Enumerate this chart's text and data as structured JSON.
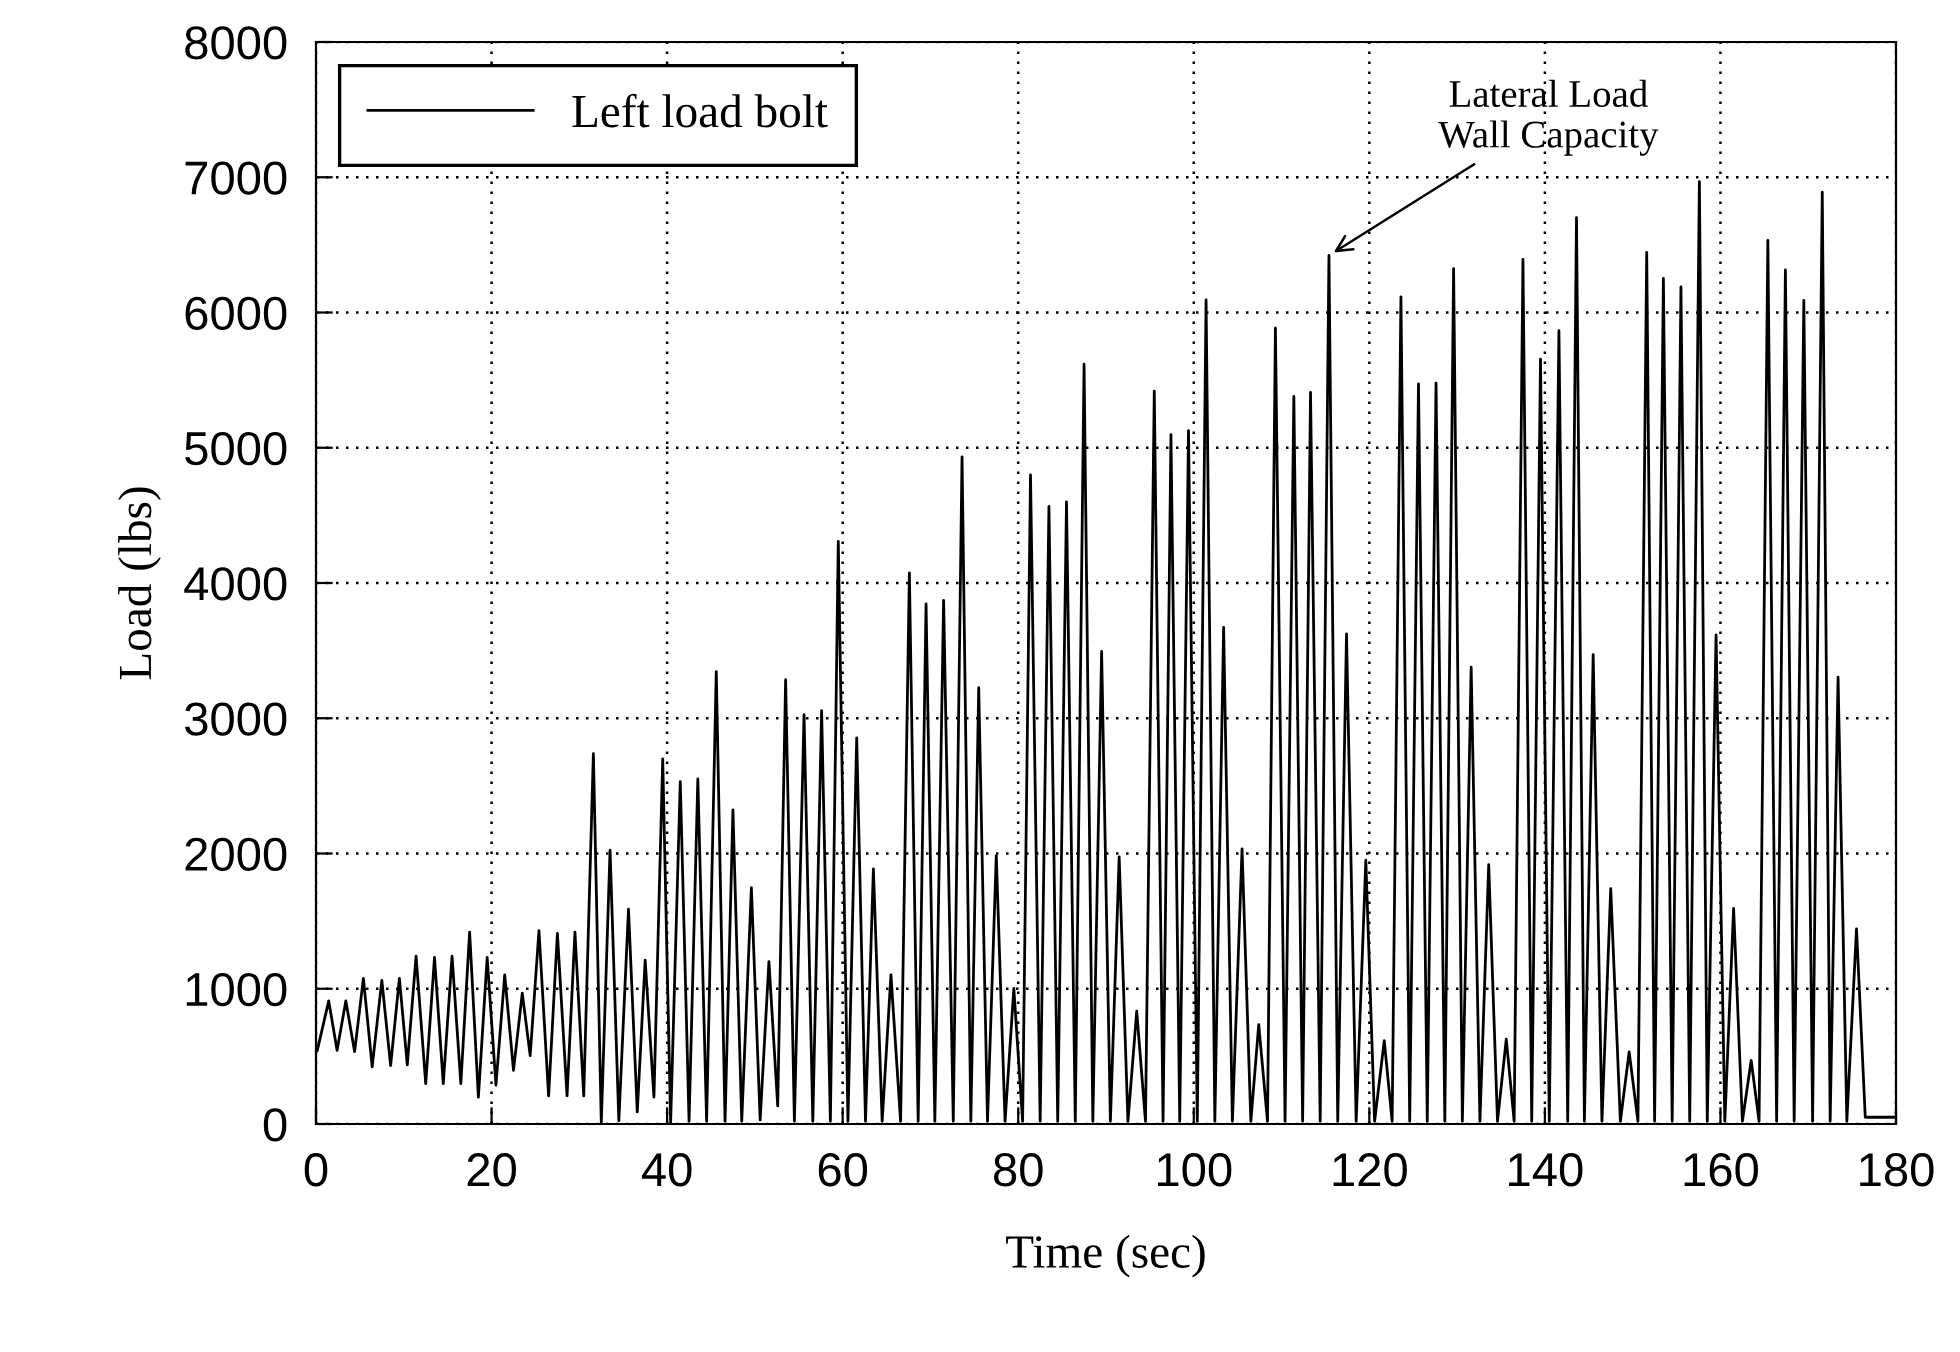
{
  "chart_data": {
    "type": "line",
    "xlabel": "Time (sec)",
    "ylabel": "Load (lbs)",
    "xlim": [
      0,
      180
    ],
    "ylim": [
      0,
      8000
    ],
    "xticks": [
      0,
      20,
      40,
      60,
      80,
      100,
      120,
      140,
      160,
      180
    ],
    "yticks": [
      0,
      1000,
      2000,
      3000,
      4000,
      5000,
      6000,
      7000,
      8000
    ],
    "grid": true,
    "legend": "top left",
    "marker": "none",
    "line_style": "solid",
    "annotations": [
      {
        "text": "Lateral Load\nWall Capacity",
        "x": 115.4,
        "y": 6422
      }
    ],
    "series": [
      {
        "name": "Left load bolt",
        "color": "#000000",
        "x": [
          0.15,
          1.45,
          2.4,
          3.4,
          4.4,
          5.4,
          6.4,
          7.5,
          8.5,
          9.5,
          10.4,
          11.4,
          12.5,
          13.5,
          14.5,
          15.5,
          16.5,
          17.5,
          18.5,
          19.5,
          20.5,
          21.5,
          22.5,
          23.5,
          24.4,
          25.4,
          26.5,
          27.5,
          28.6,
          29.5,
          30.5,
          31.6,
          32.5,
          33.5,
          34.5,
          35.6,
          36.6,
          37.5,
          38.5,
          39.5,
          40.4,
          41.5,
          42.5,
          43.5,
          44.5,
          45.6,
          46.6,
          47.5,
          48.5,
          49.6,
          50.6,
          51.6,
          52.6,
          53.5,
          54.5,
          55.6,
          56.6,
          57.6,
          58.6,
          59.5,
          60.6,
          61.6,
          62.6,
          63.5,
          64.5,
          65.5,
          66.6,
          67.6,
          68.6,
          69.5,
          70.5,
          71.5,
          72.6,
          73.6,
          74.6,
          75.5,
          76.5,
          77.5,
          78.5,
          79.5,
          80.5,
          81.4,
          82.5,
          83.5,
          84.5,
          85.5,
          86.5,
          87.5,
          88.5,
          89.5,
          90.5,
          91.5,
          92.5,
          93.5,
          94.5,
          95.5,
          96.5,
          97.4,
          98.4,
          99.4,
          100.4,
          101.4,
          102.4,
          103.4,
          104.4,
          105.5,
          106.5,
          107.4,
          108.4,
          109.3,
          110.4,
          111.4,
          112.4,
          113.3,
          114.4,
          115.4,
          116.4,
          117.4,
          118.5,
          119.6,
          120.6,
          121.7,
          122.6,
          123.6,
          124.6,
          125.6,
          126.6,
          127.6,
          128.6,
          129.6,
          130.6,
          131.6,
          132.6,
          133.6,
          134.6,
          135.6,
          136.5,
          137.5,
          138.5,
          139.5,
          140.5,
          141.6,
          142.6,
          143.6,
          144.5,
          145.5,
          146.5,
          147.5,
          148.6,
          149.6,
          150.6,
          151.6,
          152.5,
          153.5,
          154.5,
          155.5,
          156.5,
          157.6,
          158.5,
          159.5,
          160.5,
          161.5,
          162.5,
          163.5,
          164.4,
          165.4,
          166.4,
          167.4,
          168.4,
          169.5,
          170.5,
          171.6,
          172.5,
          173.4,
          174.4,
          175.5,
          176.5,
          180
        ],
        "values": [
          545,
          910,
          545,
          910,
          535,
          1077,
          422,
          1062,
          432,
          1077,
          437,
          1241,
          298,
          1231,
          298,
          1241,
          298,
          1419,
          199,
          1231,
          288,
          1102,
          397,
          968,
          506,
          1429,
          208,
          1409,
          208,
          1419,
          208,
          2739,
          10,
          2025,
          25,
          1588,
          89,
          1211,
          199,
          2700,
          10,
          2531,
          20,
          2551,
          20,
          3345,
          20,
          2323,
          20,
          1747,
          30,
          1201,
          134,
          3285,
          20,
          3027,
          20,
          3057,
          20,
          4308,
          20,
          2854,
          20,
          1886,
          20,
          1102,
          20,
          4074,
          20,
          3846,
          20,
          3871,
          20,
          4933,
          20,
          3226,
          20,
          1985,
          20,
          1002,
          20,
          4799,
          20,
          4566,
          20,
          4600,
          20,
          5618,
          20,
          3494,
          20,
          1975,
          20,
          834,
          20,
          5419,
          20,
          5097,
          20,
          5127,
          20,
          6094,
          20,
          3672,
          20,
          2035,
          20,
          734,
          20,
          5886,
          20,
          5380,
          20,
          5409,
          20,
          6422,
          20,
          3623,
          20,
          1950,
          20,
          617,
          20,
          6116,
          20,
          5473,
          20,
          5478,
          20,
          6325,
          20,
          3377,
          20,
          1918,
          20,
          627,
          20,
          6393,
          20,
          5656,
          20,
          5865,
          20,
          6701,
          20,
          3471,
          20,
          1741,
          20,
          533,
          20,
          6445,
          20,
          6252,
          20,
          6189,
          20,
          6968,
          20,
          3617,
          20,
          1594,
          20,
          470,
          20,
          6534,
          20,
          6315,
          20,
          6090,
          20,
          6890,
          20,
          3304,
          20,
          1443,
          50,
          50
        ]
      }
    ]
  }
}
